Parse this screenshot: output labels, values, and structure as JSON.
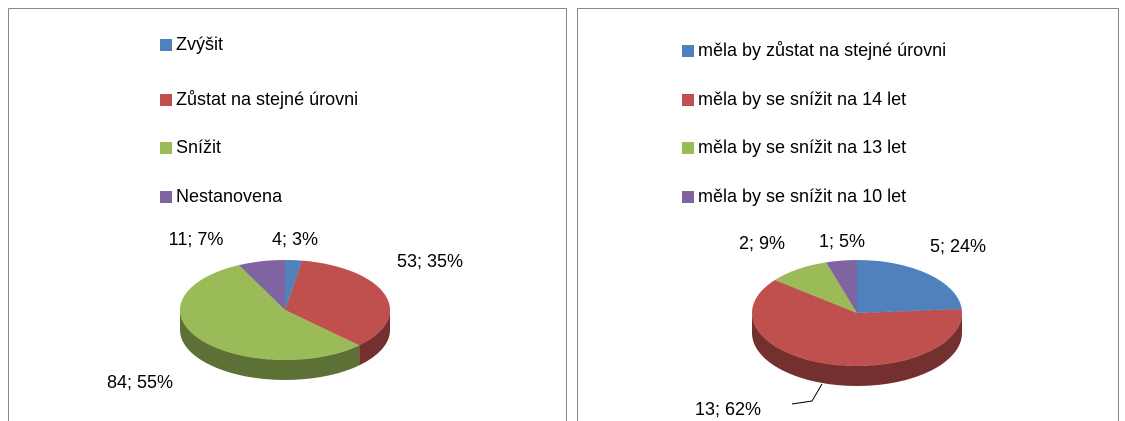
{
  "chart_data": [
    {
      "type": "pie",
      "categories": [
        "Zvýšit",
        "Zůstat na stejné úrovni",
        "Snížit",
        "Nestanovena"
      ],
      "values": [
        4,
        53,
        84,
        11
      ],
      "value_labels": [
        "4; 3%",
        "53; 35%",
        "84; 55%",
        "11; 7%"
      ],
      "colors": [
        "#4f81bd",
        "#c0504d",
        "#9bbb59",
        "#8064a2"
      ]
    },
    {
      "type": "pie",
      "categories": [
        "měla by zůstat na stejné úrovni",
        "měla by se snížit na 14 let",
        "měla by se snížit na 13 let",
        "měla by se snížit na 10 let"
      ],
      "values": [
        5,
        13,
        2,
        1
      ],
      "value_labels": [
        "5; 24%",
        "13; 62%",
        "2; 9%",
        "1; 5%"
      ],
      "colors": [
        "#4f81bd",
        "#c0504d",
        "#9bbb59",
        "#8064a2"
      ]
    }
  ]
}
